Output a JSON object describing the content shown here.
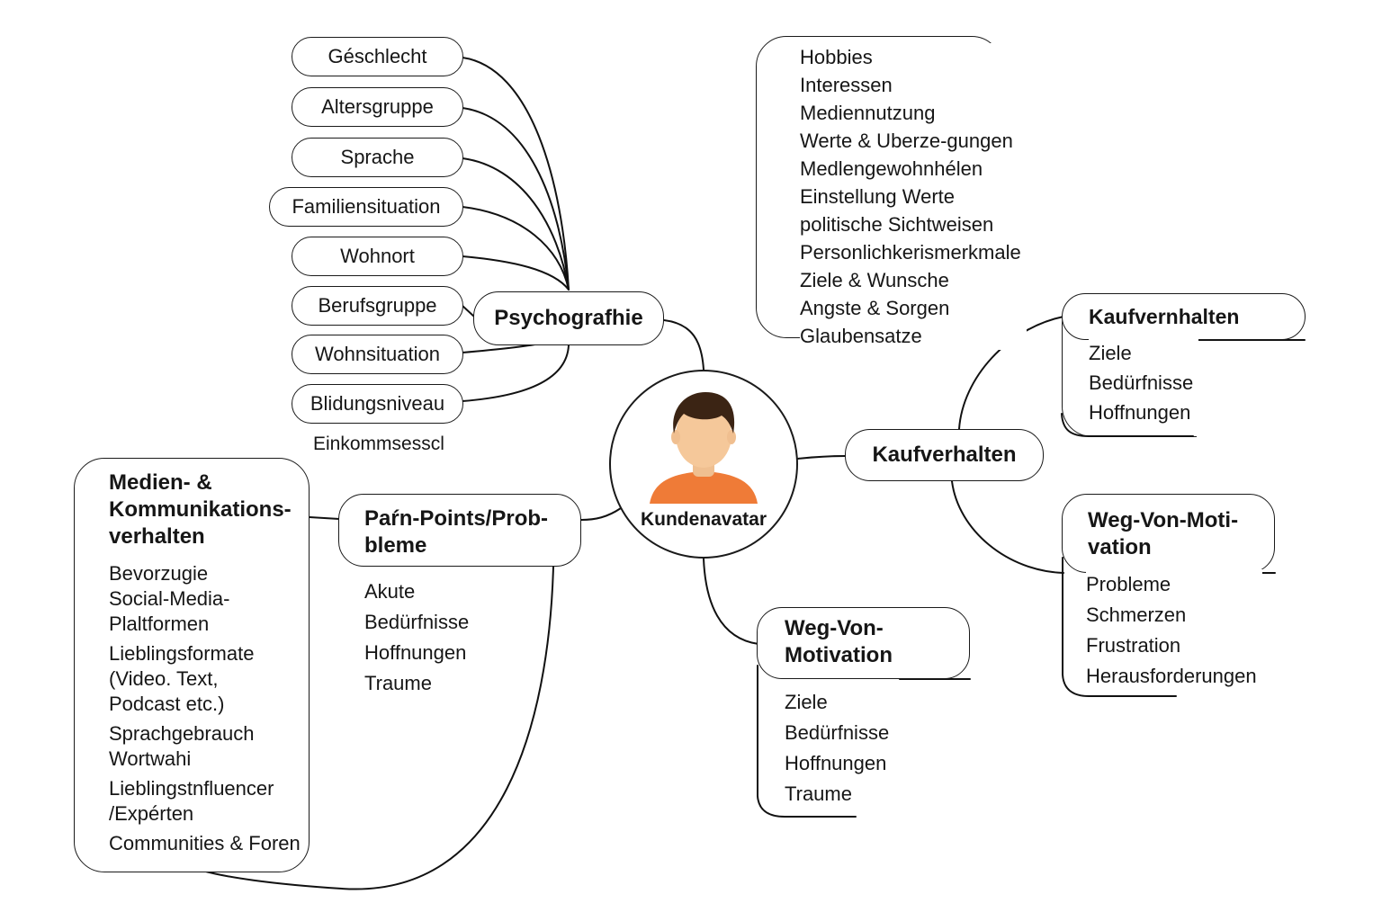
{
  "center": {
    "label": "Kundenavatar"
  },
  "psychografie": {
    "title": "Psychografhie",
    "items": [
      "Géschlecht",
      "Altersgruppe",
      "Sprache",
      "Familiensituation",
      "Wohnort",
      "Berufsgruppe",
      "Wohnsituation",
      "Blidungsniveau"
    ],
    "extra": "Einkommsesscl"
  },
  "interests": {
    "items": [
      "Hobbies",
      "Interessen",
      "Mediennutzung",
      "Werte & Uberze-gungen",
      "Medlengewohnhélen",
      "Einstellung Werte",
      "politische Sichtweisen",
      "Personlichkerismerkmale",
      "Ziele & Wunsche",
      "Angste & Sorgen",
      "Glaubensatze"
    ]
  },
  "kaufverhalten": {
    "title": "Kaufverhalten"
  },
  "kaufvernhalten": {
    "title": "Kaufvernhalten",
    "items": [
      "Ziele",
      "Bedürfnisse",
      "Hoffnungen"
    ]
  },
  "weg_von_right": {
    "title_line1": "Weg-Von-Moti-",
    "title_line2": "vation",
    "items": [
      "Probleme",
      "Schmerzen",
      "Frustration",
      "Herausforderungen"
    ]
  },
  "weg_von_bottom": {
    "title_line1": "Weg-Von-",
    "title_line2": "Motivation",
    "items": [
      "Ziele",
      "Bedürfnisse",
      "Hoffnungen",
      "Traume"
    ]
  },
  "pain_points": {
    "title_line1": "Paŕn-Points/Prob-",
    "title_line2": "bleme",
    "items": [
      "Akute",
      "Bedürfnisse",
      "Hoffnungen",
      "Traume"
    ]
  },
  "media": {
    "title_line1": "Medien- &",
    "title_line2": "Kommunikations-",
    "title_line3": "verhalten",
    "items": [
      [
        "Bevorzugie",
        "Social-Media-",
        "Plaltformen"
      ],
      [
        "Lieblingsformate",
        "(Video. Text,",
        "Podcast etc.)"
      ],
      [
        "Sprachgebrauch",
        "Wortwahi"
      ],
      [
        "Lieblingstnfluencer",
        "/Expérten"
      ],
      [
        "Communities & Foren"
      ]
    ]
  },
  "colors": {
    "line": "#111111",
    "hair": "#3b2414",
    "skin": "#f5c89a",
    "shirt": "#ef7b37"
  }
}
